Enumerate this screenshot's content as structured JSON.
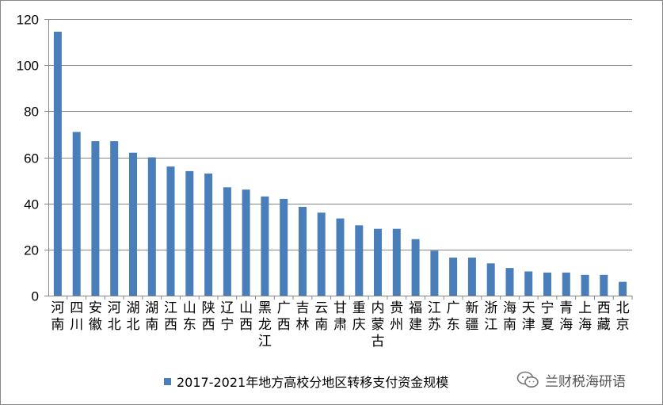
{
  "chart_data": {
    "type": "bar",
    "categories": [
      "河南",
      "四川",
      "安徽",
      "河北",
      "湖北",
      "湖南",
      "江西",
      "山东",
      "陕西",
      "辽宁",
      "山西",
      "黑龙江",
      "广西",
      "吉林",
      "云南",
      "甘肃",
      "重庆",
      "内蒙古",
      "贵州",
      "福建",
      "江苏",
      "广东",
      "新疆",
      "浙江",
      "海南",
      "天津",
      "宁夏",
      "青海",
      "上海",
      "西藏",
      "北京"
    ],
    "series": [
      {
        "name": "2017-2021年地方高校分地区转移支付资金规模",
        "values": [
          114.5,
          71,
          67,
          67,
          62,
          60,
          56,
          54,
          53,
          47,
          46,
          43,
          42,
          38.5,
          36,
          33.5,
          30.5,
          29,
          29,
          24.5,
          19.5,
          16.5,
          16.5,
          14,
          12,
          10.5,
          10,
          10,
          9,
          9,
          6
        ],
        "color": "#4a7ebb"
      }
    ],
    "ylim": [
      0,
      120
    ],
    "yticks": [
      0,
      20,
      40,
      60,
      80,
      100,
      120
    ],
    "grid": true,
    "legend_position": "bottom"
  },
  "watermark": {
    "text": "兰财税海研语",
    "icon": "wechat-icon"
  }
}
